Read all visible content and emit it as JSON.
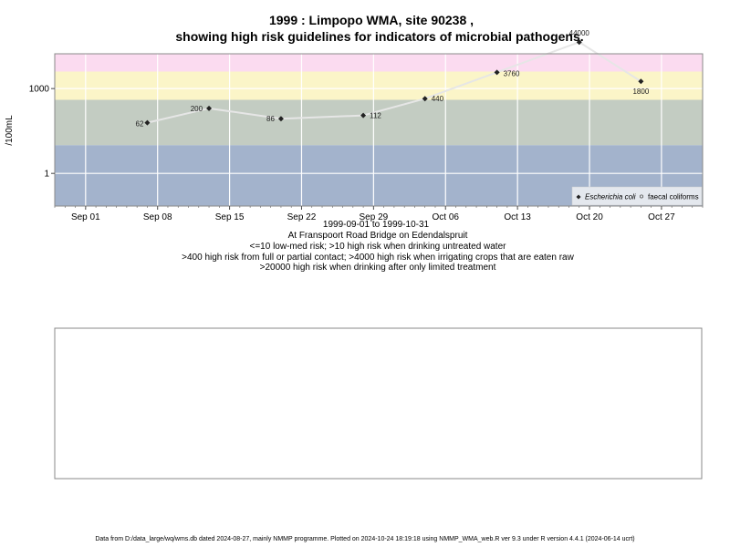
{
  "chart_data": {
    "type": "line",
    "title": "1999 : Limpopo WMA, site 90238 ,",
    "subtitle": "showing high risk guidelines for indicators of microbial pathogens.",
    "ylabel": "/100mL",
    "yscale": "log",
    "ylim": [
      0.07,
      17000
    ],
    "yticks": [
      1,
      1000
    ],
    "ytick_labels": [
      "1",
      "1000"
    ],
    "xlim": [
      "1999-08-29",
      "1999-10-31"
    ],
    "xticks": [
      "1999-09-01",
      "1999-09-08",
      "1999-09-15",
      "1999-09-22",
      "1999-09-29",
      "1999-10-06",
      "1999-10-13",
      "1999-10-20",
      "1999-10-27"
    ],
    "xtick_labels": [
      "Sep 01",
      "Sep 08",
      "Sep 15",
      "Sep 22",
      "Sep 29",
      "Oct 06",
      "Oct 13",
      "Oct 20",
      "Oct 27"
    ],
    "grid": true,
    "legend_position": "bottom-right",
    "risk_bands": [
      {
        "from": 0.07,
        "to": 10,
        "color": "#a3b3cc"
      },
      {
        "from": 10,
        "to": 400,
        "color": "#c3ccc2"
      },
      {
        "from": 400,
        "to": 4000,
        "color": "#fbf5c8"
      },
      {
        "from": 4000,
        "to": 20000,
        "color": "#fbdbf0"
      },
      {
        "from": 20000,
        "to": 100000,
        "color": "#fdb8c6"
      }
    ],
    "series": [
      {
        "name": "Escherichia coli",
        "marker": "diamond",
        "color": "#222222",
        "line_color": "#e6e6e6",
        "points": [
          {
            "x": "1999-09-07",
            "y": 62,
            "label": "62"
          },
          {
            "x": "1999-09-13",
            "y": 200,
            "label": "200"
          },
          {
            "x": "1999-09-20",
            "y": 86,
            "label": "86"
          },
          {
            "x": "1999-09-28",
            "y": 112,
            "label": "112"
          },
          {
            "x": "1999-10-04",
            "y": 440,
            "label": "440"
          },
          {
            "x": "1999-10-11",
            "y": 3760,
            "label": "3760"
          },
          {
            "x": "1999-10-19",
            "y": 44000,
            "label": "44000"
          },
          {
            "x": "1999-10-25",
            "y": 1800,
            "label": "1800"
          }
        ]
      },
      {
        "name": "faecal coliforms",
        "marker": "circle",
        "color": "#555555",
        "points": []
      }
    ],
    "date_range": "1999-09-01 to 1999-10-31",
    "location": "At Franspoort Road Bridge on Edendalspruit",
    "guidelines": [
      "<=10 low-med risk; >10 high risk when drinking untreated water",
      ">400 high risk from full or partial contact; >4000 high risk when irrigating crops that are eaten raw",
      ">20000 high risk when drinking after only limited treatment"
    ]
  },
  "footer": "Data from D:/data_large/wq/wms.db dated 2024-08-27, mainly NMMP programme. Plotted on 2024-10-24 18:19:18 using NMMP_WMA_web.R ver 9.3 under R version 4.4.1 (2024-06-14 ucrt)"
}
